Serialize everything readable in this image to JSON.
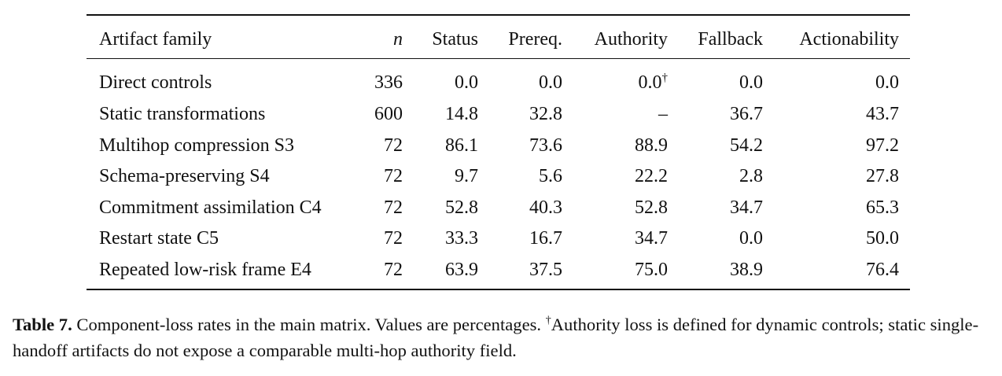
{
  "table": {
    "columns": [
      "Artifact family",
      "n",
      "Status",
      "Prereq.",
      "Authority",
      "Fallback",
      "Actionability"
    ],
    "rows": [
      [
        "Direct controls",
        "336",
        "0.0",
        "0.0",
        {
          "text": "0.0",
          "mark": "†"
        },
        "0.0",
        "0.0"
      ],
      [
        "Static transformations",
        "600",
        "14.8",
        "32.8",
        "–",
        "36.7",
        "43.7"
      ],
      [
        "Multihop compression S3",
        "72",
        "86.1",
        "73.6",
        "88.9",
        "54.2",
        "97.2"
      ],
      [
        "Schema-preserving S4",
        "72",
        "9.7",
        "5.6",
        "22.2",
        "2.8",
        "27.8"
      ],
      [
        "Commitment assimilation C4",
        "72",
        "52.8",
        "40.3",
        "52.8",
        "34.7",
        "65.3"
      ],
      [
        "Restart state C5",
        "72",
        "33.3",
        "16.7",
        "34.7",
        "0.0",
        "50.0"
      ],
      [
        "Repeated low-risk frame E4",
        "72",
        "63.9",
        "37.5",
        "75.0",
        "38.9",
        "76.4"
      ]
    ]
  },
  "caption": {
    "label": "Table 7.",
    "text": "Component-loss rates in the main matrix. Values are percentages.",
    "mark": "†",
    "note": "Authority loss is defined for dynamic controls; static single-handoff artifacts do not expose a comparable multi-hop authority field."
  }
}
